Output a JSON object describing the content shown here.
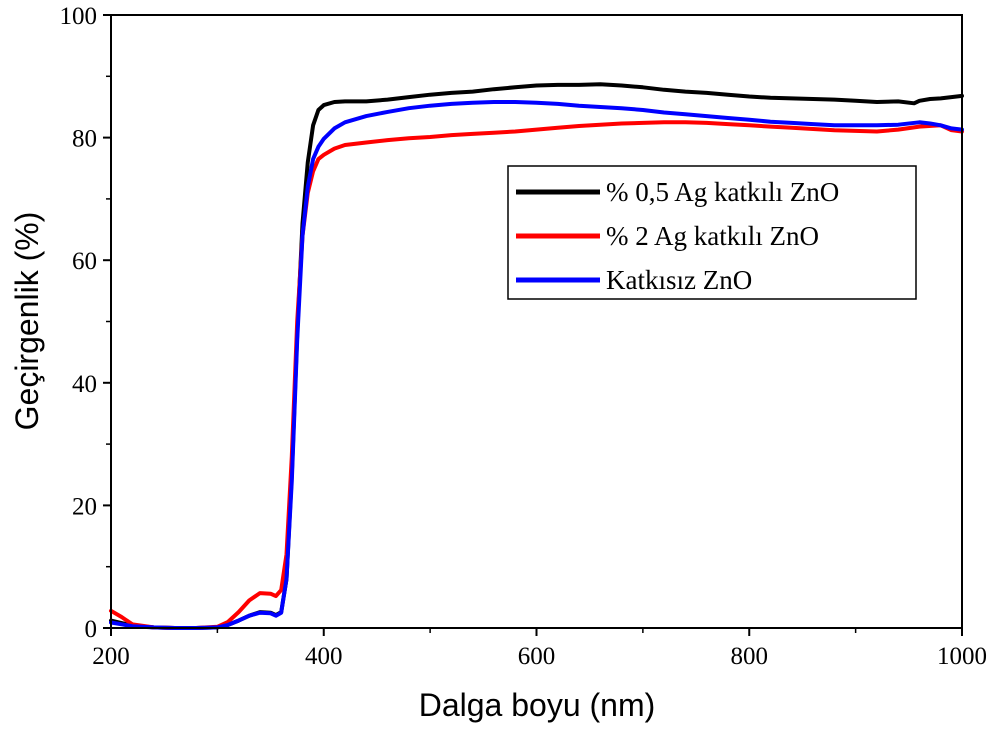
{
  "chart_data": {
    "type": "line",
    "title": "",
    "xlabel": "Dalga boyu (nm)",
    "ylabel": "Geçirgenlik (%)",
    "xlim": [
      200,
      1000
    ],
    "ylim": [
      0,
      100
    ],
    "xticks": [
      200,
      400,
      600,
      800,
      1000
    ],
    "yticks": [
      0,
      20,
      40,
      60,
      80,
      100
    ],
    "x_minor_ticks": [
      300,
      500,
      700,
      900
    ],
    "y_minor_ticks": [
      10,
      30,
      50,
      70,
      90
    ],
    "grid": false,
    "legend_position": "upper-right",
    "series": [
      {
        "name": "% 0,5 Ag katkılı ZnO",
        "color": "#000000",
        "x": [
          200,
          210,
          220,
          240,
          260,
          280,
          300,
          310,
          320,
          330,
          340,
          350,
          355,
          360,
          365,
          370,
          375,
          380,
          385,
          390,
          395,
          400,
          410,
          420,
          440,
          460,
          480,
          500,
          520,
          540,
          560,
          580,
          600,
          620,
          640,
          660,
          680,
          700,
          720,
          740,
          760,
          780,
          800,
          820,
          840,
          860,
          880,
          900,
          920,
          940,
          955,
          960,
          970,
          980,
          990,
          1000
        ],
        "y": [
          1.2,
          0.8,
          0.4,
          0.1,
          0.0,
          0.0,
          0.1,
          0.5,
          1.2,
          2.0,
          2.6,
          2.5,
          2.1,
          2.6,
          8,
          25,
          48,
          66,
          76,
          82,
          84.5,
          85.3,
          85.8,
          85.9,
          85.9,
          86.2,
          86.6,
          87.0,
          87.3,
          87.5,
          87.9,
          88.2,
          88.5,
          88.6,
          88.6,
          88.7,
          88.5,
          88.2,
          87.8,
          87.5,
          87.3,
          87.0,
          86.7,
          86.5,
          86.4,
          86.3,
          86.2,
          86.0,
          85.8,
          85.9,
          85.6,
          86.0,
          86.3,
          86.4,
          86.6,
          86.8
        ]
      },
      {
        "name": "% 2 Ag katkılı ZnO",
        "color": "#ff0000",
        "x": [
          200,
          210,
          220,
          240,
          260,
          280,
          300,
          310,
          320,
          330,
          340,
          350,
          355,
          360,
          365,
          370,
          375,
          380,
          385,
          390,
          395,
          400,
          410,
          420,
          440,
          460,
          480,
          500,
          520,
          540,
          560,
          580,
          600,
          620,
          640,
          660,
          680,
          700,
          720,
          740,
          760,
          780,
          800,
          820,
          840,
          860,
          880,
          900,
          920,
          940,
          960,
          980,
          990,
          1000
        ],
        "y": [
          2.8,
          1.8,
          0.6,
          0.1,
          0.0,
          0.0,
          0.2,
          1.0,
          2.6,
          4.5,
          5.7,
          5.6,
          5.2,
          6.2,
          12,
          28,
          50,
          64,
          71,
          74.5,
          76.5,
          77.2,
          78.2,
          78.8,
          79.2,
          79.6,
          79.9,
          80.1,
          80.4,
          80.6,
          80.8,
          81.0,
          81.3,
          81.6,
          81.9,
          82.1,
          82.3,
          82.4,
          82.5,
          82.5,
          82.4,
          82.2,
          82.0,
          81.8,
          81.6,
          81.4,
          81.2,
          81.1,
          81.0,
          81.3,
          81.8,
          82.0,
          81.2,
          81.0
        ]
      },
      {
        "name": "Katkısız ZnO",
        "color": "#0000ff",
        "x": [
          200,
          210,
          220,
          240,
          260,
          280,
          300,
          310,
          320,
          330,
          340,
          350,
          355,
          360,
          365,
          370,
          375,
          380,
          385,
          390,
          395,
          400,
          410,
          420,
          440,
          460,
          480,
          500,
          520,
          540,
          560,
          580,
          600,
          620,
          640,
          660,
          680,
          700,
          720,
          740,
          760,
          780,
          800,
          820,
          840,
          860,
          880,
          900,
          920,
          940,
          960,
          970,
          980,
          990,
          1000
        ],
        "y": [
          0.9,
          0.6,
          0.3,
          0.1,
          0.0,
          0.0,
          0.1,
          0.5,
          1.2,
          2.0,
          2.5,
          2.4,
          2.0,
          2.5,
          8,
          24,
          47,
          64,
          72,
          76.5,
          78.5,
          79.8,
          81.5,
          82.5,
          83.5,
          84.2,
          84.8,
          85.2,
          85.5,
          85.7,
          85.8,
          85.8,
          85.7,
          85.5,
          85.2,
          85.0,
          84.8,
          84.5,
          84.1,
          83.8,
          83.5,
          83.2,
          82.9,
          82.6,
          82.4,
          82.2,
          82.0,
          82.0,
          82.0,
          82.1,
          82.5,
          82.3,
          82.0,
          81.5,
          81.3
        ]
      }
    ]
  }
}
